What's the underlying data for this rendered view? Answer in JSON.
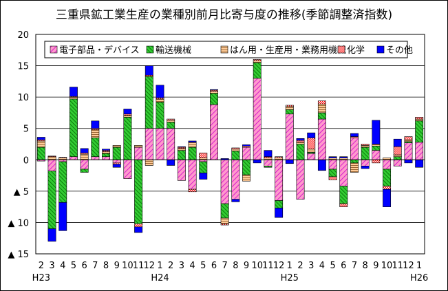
{
  "chart_data": {
    "type": "bar",
    "stacked": true,
    "title": "三重県鉱工業生産の業種別前月比寄与度の推移(季節調整済指数)",
    "ylim": [
      -15,
      20
    ],
    "yticks": [
      {
        "value": 20,
        "label": "20"
      },
      {
        "value": 15,
        "label": "15"
      },
      {
        "value": 10,
        "label": "10"
      },
      {
        "value": 5,
        "label": "5"
      },
      {
        "value": 0,
        "label": "0"
      },
      {
        "value": -5,
        "label": "▲ 5"
      },
      {
        "value": -10,
        "label": "▲ 10"
      },
      {
        "value": -15,
        "label": "▲ 15"
      }
    ],
    "grid": true,
    "legend_position": "top",
    "categories": [
      "2",
      "3",
      "4",
      "5",
      "6",
      "7",
      "8",
      "9",
      "10",
      "11",
      "12",
      "1",
      "2",
      "3",
      "4",
      "5",
      "6",
      "7",
      "8",
      "9",
      "10",
      "11",
      "12",
      "1",
      "2",
      "3",
      "4",
      "5",
      "6",
      "7",
      "8",
      "9",
      "10",
      "11",
      "12",
      "1"
    ],
    "year_labels": [
      {
        "index": 0,
        "label": "H23"
      },
      {
        "index": 11,
        "label": "H24"
      },
      {
        "index": 23,
        "label": "H25"
      },
      {
        "index": 35,
        "label": "H26"
      }
    ],
    "series": [
      {
        "name": "電子部品・デバイス",
        "color": "#ff99cc",
        "pattern": "diag-pink",
        "values": [
          -0.2,
          -1.8,
          -0.3,
          0.5,
          -1.5,
          0.5,
          0.5,
          -0.5,
          -3.0,
          2.0,
          5.0,
          5.0,
          5.0,
          -3.3,
          -4.7,
          -0.3,
          8.8,
          -7.0,
          -6.3,
          2.0,
          13.0,
          -1.0,
          -6.5,
          7.3,
          -6.3,
          1.0,
          6.5,
          -1.5,
          -4.2,
          3.5,
          -1.0,
          1.5,
          -1.5,
          -1.0,
          2.7,
          2.8
        ]
      },
      {
        "name": "輸送機械",
        "color": "#33cc33",
        "pattern": "diag-green",
        "values": [
          2.0,
          -9.2,
          -6.5,
          9.2,
          -0.5,
          3.0,
          0.5,
          2.0,
          6.8,
          -10.2,
          8.3,
          4.2,
          1.0,
          1.5,
          2.0,
          -1.8,
          1.8,
          -2.3,
          1.4,
          -2.4,
          2.5,
          -0.2,
          -1.2,
          0.7,
          2.5,
          0.2,
          1.0,
          -1.2,
          -2.8,
          -0.5,
          2.0,
          0.7,
          -2.7,
          0.5,
          0.2,
          3.4
        ]
      },
      {
        "name": "はん用・生産用・業務用機械",
        "color": "#ffcc99",
        "pattern": "horiz-tan",
        "values": [
          1.0,
          0.5,
          0.3,
          0.3,
          0.9,
          1.3,
          0.3,
          0.3,
          0.3,
          0.3,
          -0.9,
          0.5,
          0.3,
          0.3,
          0.8,
          0.3,
          0.3,
          -0.9,
          0.3,
          -1.0,
          0.3,
          0.3,
          0.3,
          0.5,
          0.3,
          0.5,
          1.4,
          0.3,
          0.3,
          -1.5,
          0.3,
          0.3,
          0.3,
          0.3,
          0.3,
          0.3
        ]
      },
      {
        "name": "化学",
        "color": "#ff0000",
        "pattern": "check-red",
        "values": [
          0.2,
          0.1,
          0.1,
          0.1,
          0.2,
          0.2,
          0.2,
          -0.2,
          0.2,
          -0.5,
          0.2,
          0.2,
          0.2,
          0.2,
          -0.4,
          0.8,
          0.2,
          -0.2,
          0.2,
          0.2,
          0.2,
          0.2,
          0.2,
          0.2,
          0.3,
          1.8,
          0.5,
          -0.5,
          -0.5,
          0.2,
          0.2,
          -0.5,
          -0.5,
          1.3,
          0.5,
          0.3
        ]
      },
      {
        "name": "その他",
        "color": "#0000ff",
        "pattern": "solid-blue",
        "values": [
          0.4,
          -2.0,
          -4.5,
          1.5,
          0.7,
          1.2,
          0.2,
          -0.5,
          0.8,
          -0.9,
          1.5,
          2.0,
          -0.9,
          0.1,
          0.2,
          -1.0,
          0.1,
          0.2,
          -0.4,
          0.2,
          -0.5,
          1.0,
          -1.5,
          -0.6,
          0.3,
          0.8,
          -1.7,
          0.2,
          0.2,
          0.5,
          -0.4,
          3.8,
          -2.8,
          1.2,
          -0.5,
          -1.2
        ]
      }
    ]
  }
}
